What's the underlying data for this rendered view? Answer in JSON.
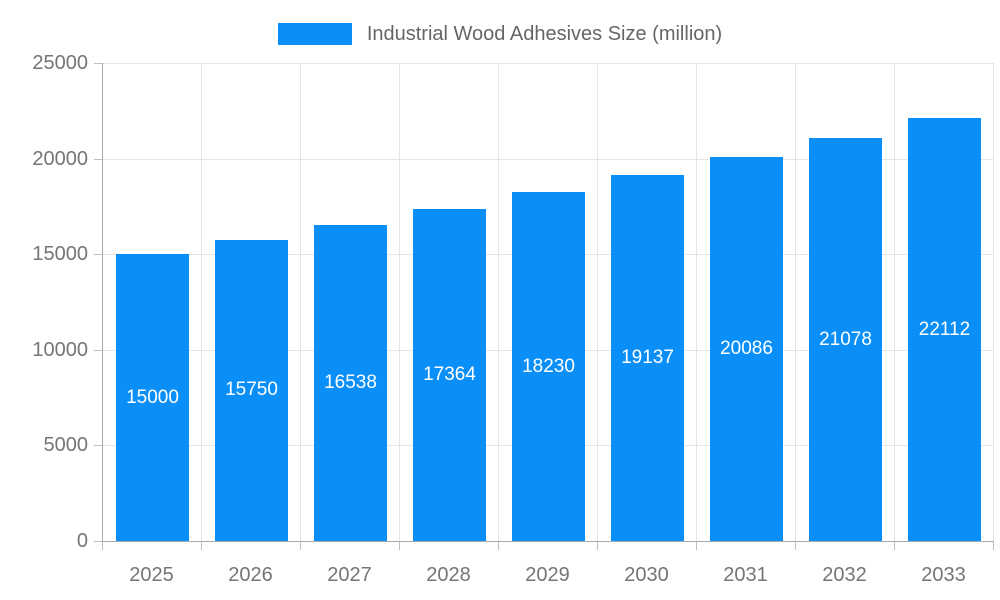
{
  "legend": {
    "label": "Industrial Wood Adhesives Size (million)"
  },
  "chart_data": {
    "type": "bar",
    "title": "",
    "categories": [
      "2025",
      "2026",
      "2027",
      "2028",
      "2029",
      "2030",
      "2031",
      "2032",
      "2033"
    ],
    "series": [
      {
        "name": "Industrial Wood Adhesives Size (million)",
        "values": [
          15000,
          15750,
          16538,
          17364,
          18230,
          19137,
          20086,
          21078,
          22112
        ]
      }
    ],
    "xlabel": "",
    "ylabel": "",
    "ylim": [
      0,
      25000
    ],
    "yticks": [
      0,
      5000,
      10000,
      15000,
      20000,
      25000
    ],
    "grid": true,
    "legend_position": "top-center",
    "value_label_position": "inside-center",
    "colors": {
      "bar": "#0a8ff8",
      "grid_line": "#e5e5e5",
      "axis_line": "#aaaaaa",
      "tick_mark": "#bdbdbd",
      "tick_text": "#757575",
      "legend_text": "#666666",
      "value_text": "#ffffff",
      "background": "#ffffff"
    }
  }
}
